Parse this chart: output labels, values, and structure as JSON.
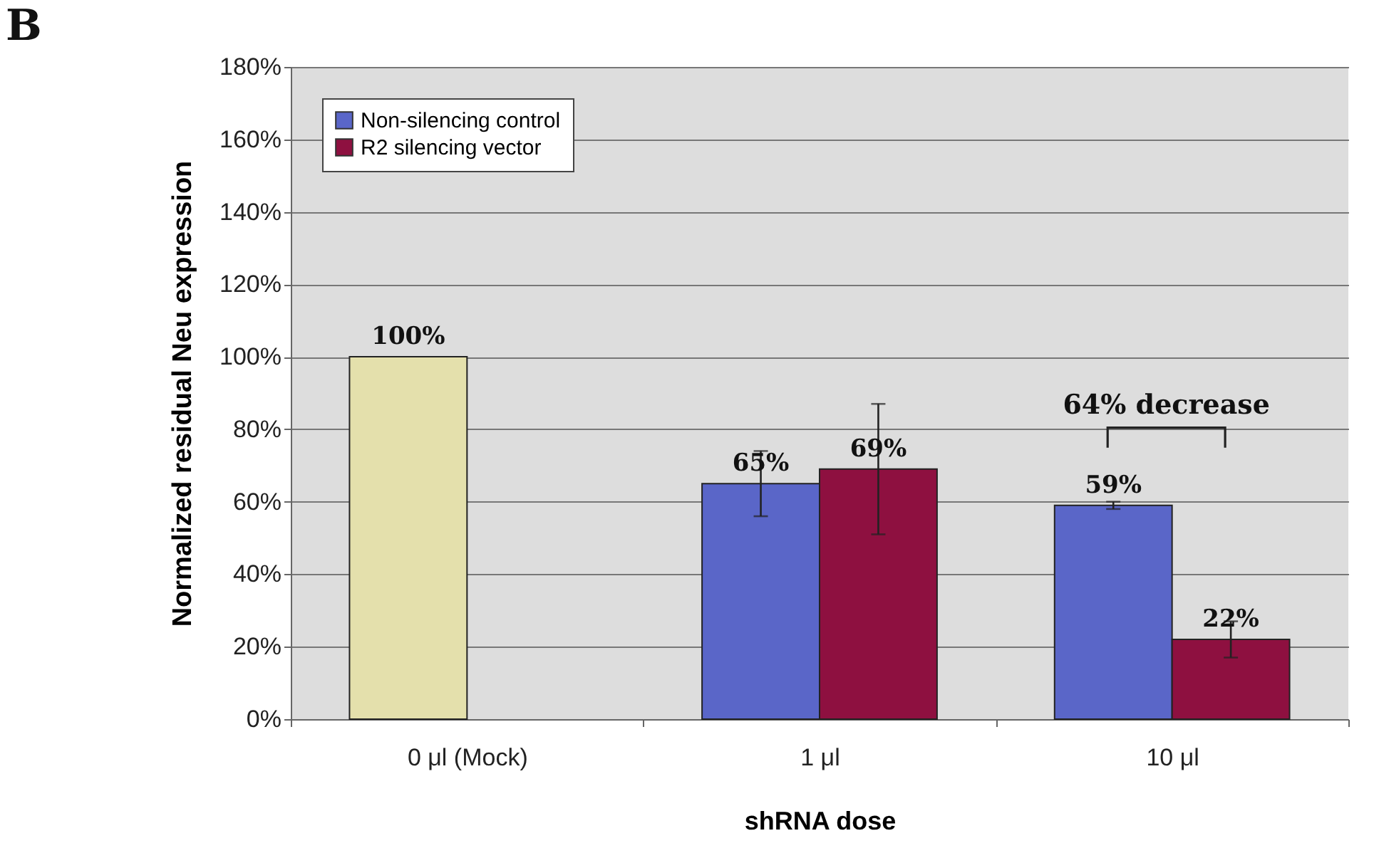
{
  "chart_data": {
    "type": "bar",
    "title": "B",
    "xlabel": "shRNA dose",
    "ylabel": "Normalized residual Neu expression",
    "categories": [
      "0 μl (Mock)",
      "1 μl",
      "10 μl"
    ],
    "series": [
      {
        "name": "Non-silencing control",
        "color": "#5a66c8",
        "colors": [
          "#e4e0ac",
          "#5a66c8",
          "#5a66c8"
        ],
        "values": [
          100,
          65,
          59
        ],
        "errors": [
          null,
          9,
          1
        ],
        "value_labels": [
          "100%",
          "65%",
          "59%"
        ]
      },
      {
        "name": "R2 silencing vector",
        "color": "#8e1040",
        "values": [
          null,
          69,
          22
        ],
        "errors": [
          null,
          18,
          5
        ],
        "value_labels": [
          null,
          "69%",
          "22%"
        ]
      }
    ],
    "ylim": [
      0,
      180
    ],
    "yticks": [
      {
        "value": 0,
        "label": "0%"
      },
      {
        "value": 20,
        "label": "20%"
      },
      {
        "value": 40,
        "label": "40%"
      },
      {
        "value": 60,
        "label": "60%"
      },
      {
        "value": 80,
        "label": "80%"
      },
      {
        "value": 100,
        "label": "100%"
      },
      {
        "value": 120,
        "label": "120%"
      },
      {
        "value": 140,
        "label": "140%"
      },
      {
        "value": 160,
        "label": "160%"
      },
      {
        "value": 180,
        "label": "180%"
      }
    ],
    "annotations": [
      "64% decrease"
    ],
    "grid": "y",
    "legend": "top left"
  }
}
